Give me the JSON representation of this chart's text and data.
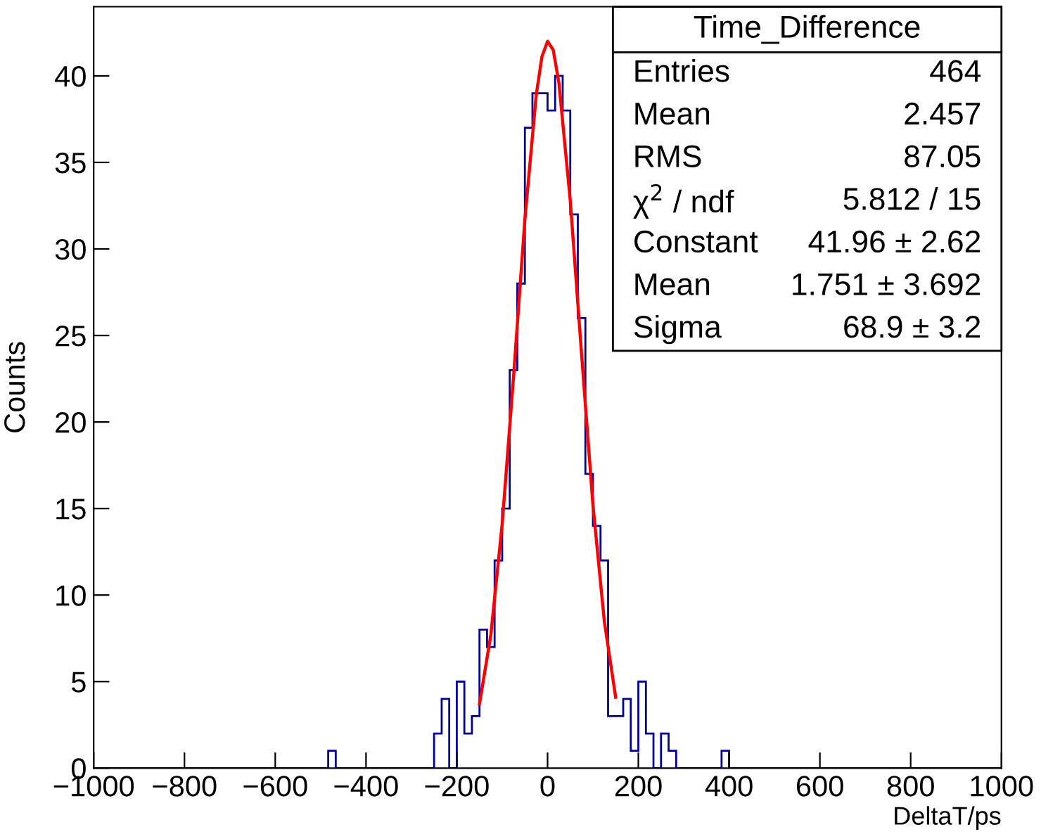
{
  "chart_data": {
    "type": "histogram",
    "xlabel": "DeltaT/ps",
    "ylabel": "Counts",
    "annotations": [
      "Time_Difference",
      "Entries",
      "464",
      "Mean",
      "2.457",
      "RMS",
      "87.05",
      "χ$^{2}$ / ndf",
      "5.812 / 15",
      "Constant",
      "41.96 ± 2.62",
      "Mean",
      "1.751 ± 3.692",
      "Sigma",
      "68.9 ± 3.2"
    ],
    "bins": [
      -1000,
      -983.33,
      -966.67,
      -950,
      -933.33,
      -916.67,
      -900,
      -883.33,
      -866.67,
      -850,
      -833.33,
      -816.67,
      -800,
      -783.33,
      -766.67,
      -750,
      -733.33,
      -716.67,
      -700,
      -683.33,
      -666.67,
      -650,
      -633.33,
      -616.67,
      -600,
      -583.33,
      -566.67,
      -550,
      -533.33,
      -516.67,
      -500,
      -483.33,
      -466.67,
      -450,
      -433.33,
      -416.67,
      -400,
      -383.33,
      -366.67,
      -350,
      -333.33,
      -316.67,
      -300,
      -283.33,
      -266.67,
      -250,
      -233.33,
      -216.67,
      -200,
      -183.33,
      -166.67,
      -150,
      -133.33,
      -116.67,
      -100,
      -83.33,
      -66.67,
      -50,
      -33.33,
      -16.67,
      0,
      16.67,
      33.33,
      50,
      66.67,
      83.33,
      100,
      116.67,
      133.33,
      150,
      166.67,
      183.33,
      200,
      216.67,
      233.33,
      250,
      266.67,
      283.33,
      300,
      316.67,
      333.33,
      350,
      366.67,
      383.33,
      400,
      416.67,
      433.33,
      450,
      466.67,
      483.33,
      500,
      516.67,
      533.33,
      550,
      566.67,
      583.33,
      600,
      616.67,
      633.33,
      650,
      666.67,
      683.33,
      700,
      716.67,
      733.33,
      750,
      766.67,
      783.33,
      800,
      816.67,
      833.33,
      850,
      866.67,
      883.33,
      900,
      916.67,
      933.33,
      950,
      966.67,
      983.33,
      1000
    ],
    "series": [
      {
        "color": "#000099",
        "values": [
          0,
          0,
          0,
          0,
          0,
          0,
          0,
          0,
          0,
          0,
          0,
          0,
          0,
          0,
          0,
          0,
          0,
          0,
          0,
          0,
          0,
          0,
          0,
          0,
          0,
          0,
          0,
          0,
          0,
          0,
          0,
          1,
          0,
          0,
          0,
          0,
          0,
          0,
          0,
          0,
          0,
          0,
          0,
          0,
          0,
          2,
          4,
          0,
          5,
          2,
          3,
          8,
          7,
          12,
          15,
          23,
          28,
          37,
          39,
          39,
          38,
          40,
          38,
          32,
          26,
          17,
          14,
          12,
          3,
          3,
          4,
          1,
          5,
          2,
          0,
          2,
          1,
          0,
          0,
          0,
          0,
          0,
          0,
          1,
          0,
          0,
          0,
          0,
          0,
          0,
          0,
          0,
          0,
          0,
          0,
          0,
          0,
          0,
          0,
          0,
          0,
          0,
          0,
          0,
          0,
          0,
          0,
          0,
          0,
          0,
          0,
          0,
          0,
          0,
          0,
          0,
          0,
          0,
          0,
          0
        ]
      },
      {
        "type": "line",
        "color": "#ff0000",
        "x": [
          -150,
          -125,
          -100,
          -75,
          -50,
          -25,
          -12.5,
          0,
          12.5,
          25,
          50,
          75,
          100,
          125,
          150
        ],
        "values": [
          3.7,
          7.7,
          14.1,
          22.6,
          31.7,
          38.9,
          41.1,
          42.0,
          41.5,
          39.6,
          32.8,
          23.9,
          15.2,
          8.5,
          4.1
        ]
      }
    ],
    "xlim": [
      -1000,
      1000
    ],
    "xticks": [
      {
        "value": -1000,
        "label": "−1000"
      },
      {
        "value": -800,
        "label": "−800"
      },
      {
        "value": -600,
        "label": "−600"
      },
      {
        "value": -400,
        "label": "−400"
      },
      {
        "value": -200,
        "label": "−200"
      },
      0,
      200,
      400,
      600,
      800,
      1000
    ],
    "ylim": [
      0,
      44
    ],
    "yticks": [
      0,
      5,
      10,
      15,
      20,
      25,
      30,
      35,
      40
    ],
    "grid": false,
    "legend": false
  }
}
